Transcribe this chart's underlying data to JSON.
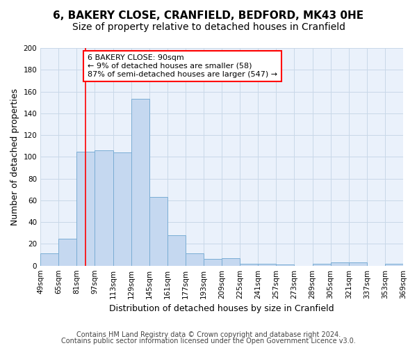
{
  "title_line1": "6, BAKERY CLOSE, CRANFIELD, BEDFORD, MK43 0HE",
  "title_line2": "Size of property relative to detached houses in Cranfield",
  "xlabel": "Distribution of detached houses by size in Cranfield",
  "ylabel": "Number of detached properties",
  "tick_labels": [
    "49sqm",
    "65sqm",
    "81sqm",
    "97sqm",
    "113sqm",
    "129sqm",
    "145sqm",
    "161sqm",
    "177sqm",
    "193sqm",
    "209sqm",
    "225sqm",
    "241sqm",
    "257sqm",
    "273sqm",
    "289sqm",
    "305sqm",
    "321sqm",
    "337sqm",
    "353sqm",
    "369sqm"
  ],
  "values": [
    11,
    25,
    105,
    106,
    104,
    153,
    63,
    28,
    11,
    6,
    7,
    2,
    2,
    1,
    0,
    2,
    3,
    3,
    0,
    2
  ],
  "bar_color": "#c5d8f0",
  "bar_edge_color": "#7aadd4",
  "grid_color": "#c8d8e8",
  "background_color": "#eaf1fb",
  "annotation_line1": "6 BAKERY CLOSE: 90sqm",
  "annotation_line2": "← 9% of detached houses are smaller (58)",
  "annotation_line3": "87% of semi-detached houses are larger (547) →",
  "red_line_x": 2.5,
  "ylim": [
    0,
    200
  ],
  "yticks": [
    0,
    20,
    40,
    60,
    80,
    100,
    120,
    140,
    160,
    180,
    200
  ],
  "footer_line1": "Contains HM Land Registry data © Crown copyright and database right 2024.",
  "footer_line2": "Contains public sector information licensed under the Open Government Licence v3.0.",
  "title_fontsize": 11,
  "subtitle_fontsize": 10,
  "ylabel_fontsize": 9,
  "xlabel_fontsize": 9,
  "tick_fontsize": 7.5,
  "footer_fontsize": 7,
  "annotation_fontsize": 8
}
